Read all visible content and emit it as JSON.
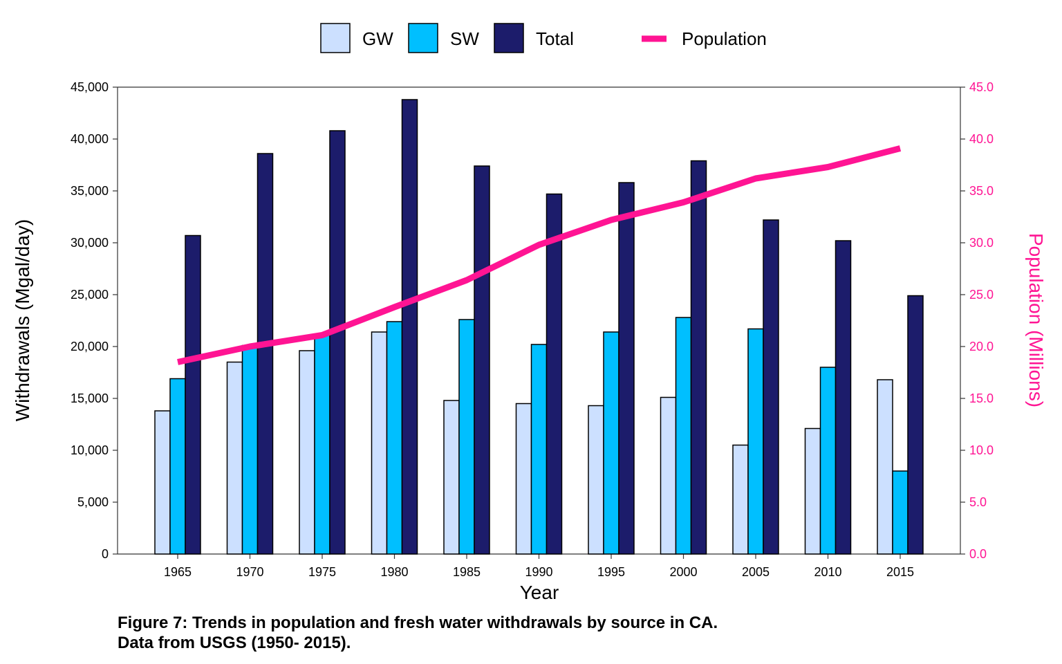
{
  "chart_data": {
    "type": "bar",
    "categories": [
      "1965",
      "1970",
      "1975",
      "1980",
      "1985",
      "1990",
      "1995",
      "2000",
      "2005",
      "2010",
      "2015"
    ],
    "series": [
      {
        "name": "GW",
        "color": "#cce0ff",
        "values": [
          13800,
          18500,
          19600,
          21400,
          14800,
          14500,
          14300,
          15100,
          10500,
          12100,
          16800
        ]
      },
      {
        "name": "SW",
        "color": "#00bfff",
        "values": [
          16900,
          20100,
          21100,
          22400,
          22600,
          20200,
          21400,
          22800,
          21700,
          18000,
          8000
        ]
      },
      {
        "name": "Total",
        "color": "#1c1c6b",
        "values": [
          30700,
          38600,
          40800,
          43800,
          37400,
          34700,
          35800,
          37900,
          32200,
          30200,
          24900
        ]
      }
    ],
    "line_series": {
      "name": "Population",
      "color": "#ff1493",
      "axis": "right",
      "values": [
        18.5,
        20.0,
        21.1,
        23.8,
        26.4,
        29.8,
        32.2,
        33.9,
        36.2,
        37.3,
        39.1
      ]
    },
    "xlabel": "Year",
    "ylabel": "Withdrawals (Mgal/day)",
    "y2label": "Population (Millions)",
    "ylim": [
      0,
      45000
    ],
    "y2lim": [
      0,
      45
    ],
    "yticks": [
      "0",
      "5,000",
      "10,000",
      "15,000",
      "20,000",
      "25,000",
      "30,000",
      "35,000",
      "40,000",
      "45,000"
    ],
    "y2ticks": [
      "0.0",
      "5.0",
      "10.0",
      "15.0",
      "20.0",
      "25.0",
      "30.0",
      "35.0",
      "40.0",
      "45.0"
    ],
    "grid": false,
    "legend": "top-center",
    "caption_lines": [
      "Figure 7: Trends in population and fresh water withdrawals by source in CA.",
      "Data from USGS (1950- 2015)."
    ]
  }
}
